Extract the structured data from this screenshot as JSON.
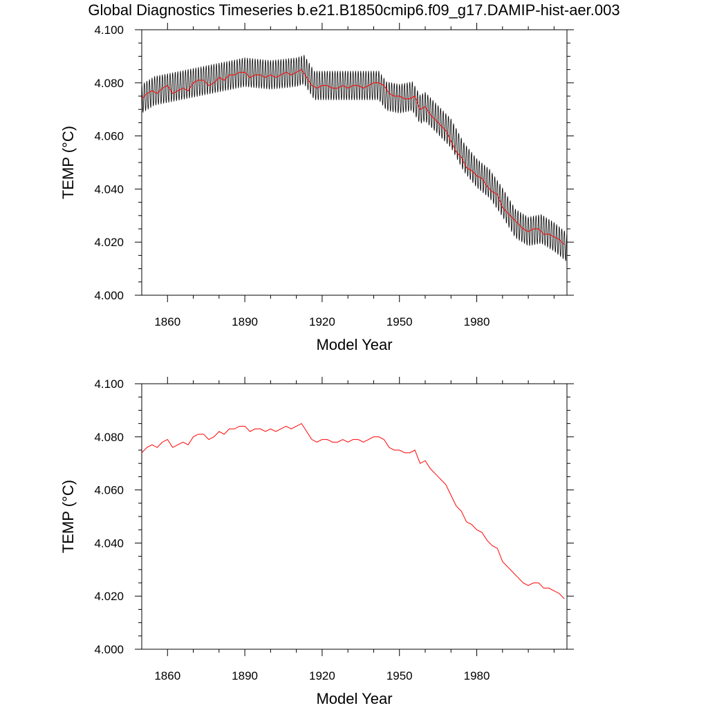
{
  "title": "Global Diagnostics Timeseries b.e21.B1850cmip6.f09_g17.DAMIP-hist-aer.003",
  "colors": {
    "raw": "#000000",
    "smooth": "#ff0000",
    "axis": "#000000"
  },
  "chart_data": [
    {
      "type": "line",
      "xlabel": "Model Year",
      "ylabel": "TEMP (°C)",
      "xlim": [
        1850,
        2015
      ],
      "ylim": [
        4.0,
        4.1
      ],
      "xticks": [
        1860,
        1890,
        1920,
        1950,
        1980
      ],
      "xtick_labels": [
        "1860",
        "1890",
        "1920",
        "1950",
        "1980"
      ],
      "yticks": [
        4.0,
        4.02,
        4.04,
        4.06,
        4.08,
        4.1
      ],
      "ytick_labels": [
        "4.000",
        "4.020",
        "4.040",
        "4.060",
        "4.080",
        "4.100"
      ],
      "grid": false,
      "series": [
        {
          "role": "monthly",
          "color": "#000000",
          "seasonal_amplitude": 0.0055,
          "x": [
            1850,
            1855,
            1860,
            1870,
            1880,
            1890,
            1900,
            1910,
            1913,
            1917,
            1925,
            1935,
            1942,
            1945,
            1950,
            1955,
            1958,
            1960,
            1965,
            1970,
            1975,
            1980,
            1985,
            1990,
            1995,
            2000,
            2005,
            2010,
            2015
          ],
          "y": [
            4.074,
            4.077,
            4.078,
            4.08,
            4.082,
            4.084,
            4.083,
            4.084,
            4.085,
            4.079,
            4.079,
            4.079,
            4.079,
            4.075,
            4.074,
            4.075,
            4.07,
            4.071,
            4.066,
            4.061,
            4.052,
            4.046,
            4.042,
            4.035,
            4.027,
            4.024,
            4.025,
            4.022,
            4.018
          ]
        },
        {
          "role": "annual-mean",
          "color": "#ff0000",
          "x": [
            1850,
            1852,
            1854,
            1856,
            1858,
            1860,
            1862,
            1864,
            1866,
            1868,
            1870,
            1872,
            1874,
            1876,
            1878,
            1880,
            1882,
            1884,
            1886,
            1888,
            1890,
            1892,
            1894,
            1896,
            1898,
            1900,
            1902,
            1904,
            1906,
            1908,
            1910,
            1912,
            1914,
            1916,
            1918,
            1920,
            1922,
            1924,
            1926,
            1928,
            1930,
            1932,
            1934,
            1936,
            1938,
            1940,
            1942,
            1944,
            1946,
            1948,
            1950,
            1952,
            1954,
            1956,
            1958,
            1960,
            1962,
            1964,
            1966,
            1968,
            1970,
            1972,
            1974,
            1976,
            1978,
            1980,
            1982,
            1984,
            1986,
            1988,
            1990,
            1992,
            1994,
            1996,
            1998,
            2000,
            2002,
            2004,
            2006,
            2008,
            2010,
            2012,
            2014
          ],
          "y": [
            4.074,
            4.076,
            4.077,
            4.076,
            4.078,
            4.079,
            4.076,
            4.077,
            4.078,
            4.077,
            4.08,
            4.081,
            4.081,
            4.079,
            4.08,
            4.082,
            4.081,
            4.083,
            4.083,
            4.084,
            4.084,
            4.082,
            4.083,
            4.083,
            4.082,
            4.083,
            4.082,
            4.083,
            4.084,
            4.083,
            4.084,
            4.085,
            4.082,
            4.079,
            4.078,
            4.079,
            4.079,
            4.078,
            4.078,
            4.079,
            4.078,
            4.079,
            4.079,
            4.078,
            4.079,
            4.08,
            4.08,
            4.079,
            4.076,
            4.075,
            4.075,
            4.074,
            4.074,
            4.075,
            4.07,
            4.071,
            4.068,
            4.066,
            4.064,
            4.062,
            4.058,
            4.054,
            4.052,
            4.048,
            4.047,
            4.045,
            4.044,
            4.041,
            4.039,
            4.038,
            4.033,
            4.031,
            4.029,
            4.027,
            4.025,
            4.024,
            4.025,
            4.025,
            4.023,
            4.023,
            4.022,
            4.021,
            4.019
          ]
        }
      ]
    },
    {
      "type": "line",
      "xlabel": "Model Year",
      "ylabel": "TEMP (°C)",
      "xlim": [
        1850,
        2015
      ],
      "ylim": [
        4.0,
        4.1
      ],
      "xticks": [
        1860,
        1890,
        1920,
        1950,
        1980
      ],
      "xtick_labels": [
        "1860",
        "1890",
        "1920",
        "1950",
        "1980"
      ],
      "yticks": [
        4.0,
        4.02,
        4.04,
        4.06,
        4.08,
        4.1
      ],
      "ytick_labels": [
        "4.000",
        "4.020",
        "4.040",
        "4.060",
        "4.080",
        "4.100"
      ],
      "grid": false,
      "series": [
        {
          "role": "annual-mean",
          "color": "#ff0000",
          "x": [
            1850,
            1852,
            1854,
            1856,
            1858,
            1860,
            1862,
            1864,
            1866,
            1868,
            1870,
            1872,
            1874,
            1876,
            1878,
            1880,
            1882,
            1884,
            1886,
            1888,
            1890,
            1892,
            1894,
            1896,
            1898,
            1900,
            1902,
            1904,
            1906,
            1908,
            1910,
            1912,
            1914,
            1916,
            1918,
            1920,
            1922,
            1924,
            1926,
            1928,
            1930,
            1932,
            1934,
            1936,
            1938,
            1940,
            1942,
            1944,
            1946,
            1948,
            1950,
            1952,
            1954,
            1956,
            1958,
            1960,
            1962,
            1964,
            1966,
            1968,
            1970,
            1972,
            1974,
            1976,
            1978,
            1980,
            1982,
            1984,
            1986,
            1988,
            1990,
            1992,
            1994,
            1996,
            1998,
            2000,
            2002,
            2004,
            2006,
            2008,
            2010,
            2012,
            2014
          ],
          "y": [
            4.074,
            4.076,
            4.077,
            4.076,
            4.078,
            4.079,
            4.076,
            4.077,
            4.078,
            4.077,
            4.08,
            4.081,
            4.081,
            4.079,
            4.08,
            4.082,
            4.081,
            4.083,
            4.083,
            4.084,
            4.084,
            4.082,
            4.083,
            4.083,
            4.082,
            4.083,
            4.082,
            4.083,
            4.084,
            4.083,
            4.084,
            4.085,
            4.082,
            4.079,
            4.078,
            4.079,
            4.079,
            4.078,
            4.078,
            4.079,
            4.078,
            4.079,
            4.079,
            4.078,
            4.079,
            4.08,
            4.08,
            4.079,
            4.076,
            4.075,
            4.075,
            4.074,
            4.074,
            4.075,
            4.07,
            4.071,
            4.068,
            4.066,
            4.064,
            4.062,
            4.058,
            4.054,
            4.052,
            4.048,
            4.047,
            4.045,
            4.044,
            4.041,
            4.039,
            4.038,
            4.033,
            4.031,
            4.029,
            4.027,
            4.025,
            4.024,
            4.025,
            4.025,
            4.023,
            4.023,
            4.022,
            4.021,
            4.019
          ]
        }
      ]
    }
  ]
}
